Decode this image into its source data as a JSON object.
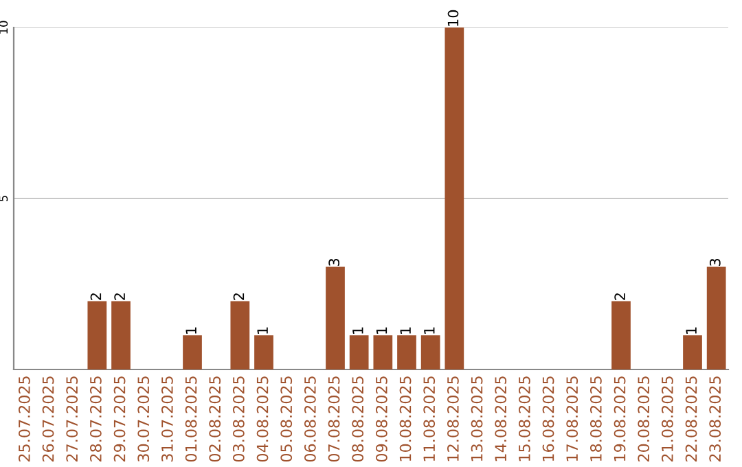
{
  "chart_data": {
    "type": "bar",
    "categories": [
      "25.07.2025",
      "26.07.2025",
      "27.07.2025",
      "28.07.2025",
      "29.07.2025",
      "30.07.2025",
      "31.07.2025",
      "01.08.2025",
      "02.08.2025",
      "03.08.2025",
      "04.08.2025",
      "05.08.2025",
      "06.08.2025",
      "07.08.2025",
      "08.08.2025",
      "09.08.2025",
      "10.08.2025",
      "11.08.2025",
      "12.08.2025",
      "13.08.2025",
      "14.08.2025",
      "15.08.2025",
      "16.08.2025",
      "17.08.2025",
      "18.08.2025",
      "19.08.2025",
      "20.08.2025",
      "21.08.2025",
      "22.08.2025",
      "23.08.2025"
    ],
    "values": [
      0,
      0,
      0,
      2,
      2,
      0,
      0,
      1,
      0,
      2,
      1,
      0,
      0,
      3,
      1,
      1,
      1,
      1,
      10,
      0,
      0,
      0,
      0,
      0,
      0,
      2,
      0,
      0,
      1,
      3
    ],
    "value_labels": [
      null,
      null,
      null,
      "2",
      "2",
      null,
      null,
      "1",
      null,
      "2",
      "1",
      null,
      null,
      "3",
      "1",
      "1",
      "1",
      "1",
      "10",
      null,
      null,
      null,
      null,
      null,
      null,
      "2",
      null,
      null,
      "1",
      "3"
    ],
    "color": "#a0522d",
    "ylim": [
      0,
      10
    ],
    "yticks": [
      5,
      10
    ],
    "grid": "y"
  }
}
